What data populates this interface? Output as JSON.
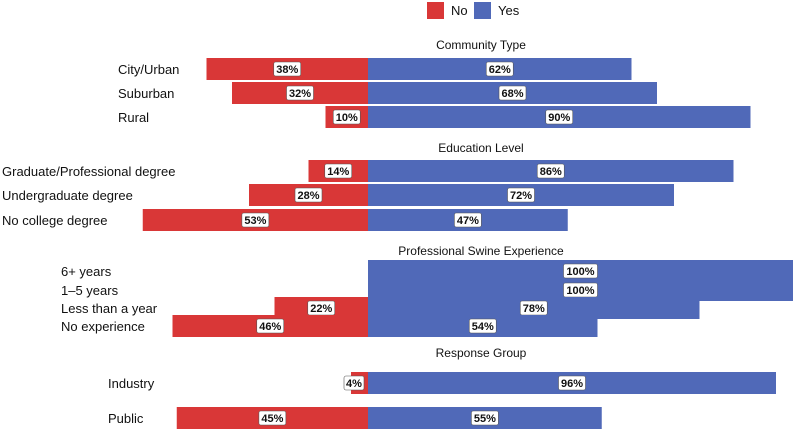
{
  "chart_data": {
    "type": "bar",
    "orientation": "horizontal-diverging",
    "legend": [
      {
        "name": "No",
        "color": "#d93737"
      },
      {
        "name": "Yes",
        "color": "#5069b8"
      }
    ],
    "legend_position": "top-right",
    "x_range": [
      -100,
      100
    ],
    "panels": [
      {
        "title": "Community Type",
        "categories": [
          "City/Urban",
          "Suburban",
          "Rural"
        ],
        "series": [
          {
            "name": "No",
            "values": [
              38,
              32,
              10
            ],
            "labels": [
              "38%",
              "32%",
              "10%"
            ]
          },
          {
            "name": "Yes",
            "values": [
              62,
              68,
              90
            ],
            "labels": [
              "62%",
              "68%",
              "90%"
            ]
          }
        ]
      },
      {
        "title": "Education Level",
        "categories": [
          "Graduate/Professional degree",
          "Undergraduate degree",
          "No college degree"
        ],
        "series": [
          {
            "name": "No",
            "values": [
              14,
              28,
              53
            ],
            "labels": [
              "14%",
              "28%",
              "53%"
            ]
          },
          {
            "name": "Yes",
            "values": [
              86,
              72,
              47
            ],
            "labels": [
              "86%",
              "72%",
              "47%"
            ]
          }
        ]
      },
      {
        "title": "Professional Swine Experience",
        "categories": [
          "6+ years",
          "1–5 years",
          "Less than a year",
          "No experience"
        ],
        "series": [
          {
            "name": "No",
            "values": [
              0,
              0,
              22,
              46
            ],
            "labels": [
              "",
              "",
              "22%",
              "46%"
            ]
          },
          {
            "name": "Yes",
            "values": [
              100,
              100,
              78,
              54
            ],
            "labels": [
              "100%",
              "100%",
              "78%",
              "54%"
            ]
          }
        ]
      },
      {
        "title": "Response Group",
        "categories": [
          "Industry",
          "Public"
        ],
        "series": [
          {
            "name": "No",
            "values": [
              4,
              45
            ],
            "labels": [
              "4%",
              "45%"
            ]
          },
          {
            "name": "Yes",
            "values": [
              96,
              55
            ],
            "labels": [
              "96%",
              "55%"
            ]
          }
        ]
      }
    ]
  }
}
